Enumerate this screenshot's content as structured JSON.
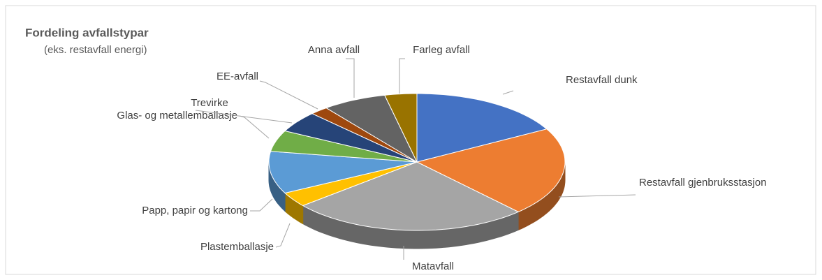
{
  "chart_data": {
    "type": "pie3d",
    "title": "Fordeling avfallstypar",
    "subtitle": "(eks. restavfall energi)",
    "categories": [
      "Restavfall dunk",
      "Restavfall gjenbruksstasjon",
      "Matavfall",
      "Plastemballasje",
      "Papp, papir og kartong",
      "Glas- og metallemballasje",
      "Trevirke",
      "EE-avfall",
      "Anna avfall",
      "Farleg avfall"
    ],
    "values": [
      17,
      21,
      26,
      3.5,
      10,
      5,
      5,
      2,
      7,
      3.5
    ],
    "colors": [
      "#4472c4",
      "#ed7d31",
      "#a5a5a5",
      "#ffc000",
      "#5b9bd5",
      "#70ad47",
      "#264478",
      "#9e480e",
      "#636363",
      "#997300"
    ]
  }
}
